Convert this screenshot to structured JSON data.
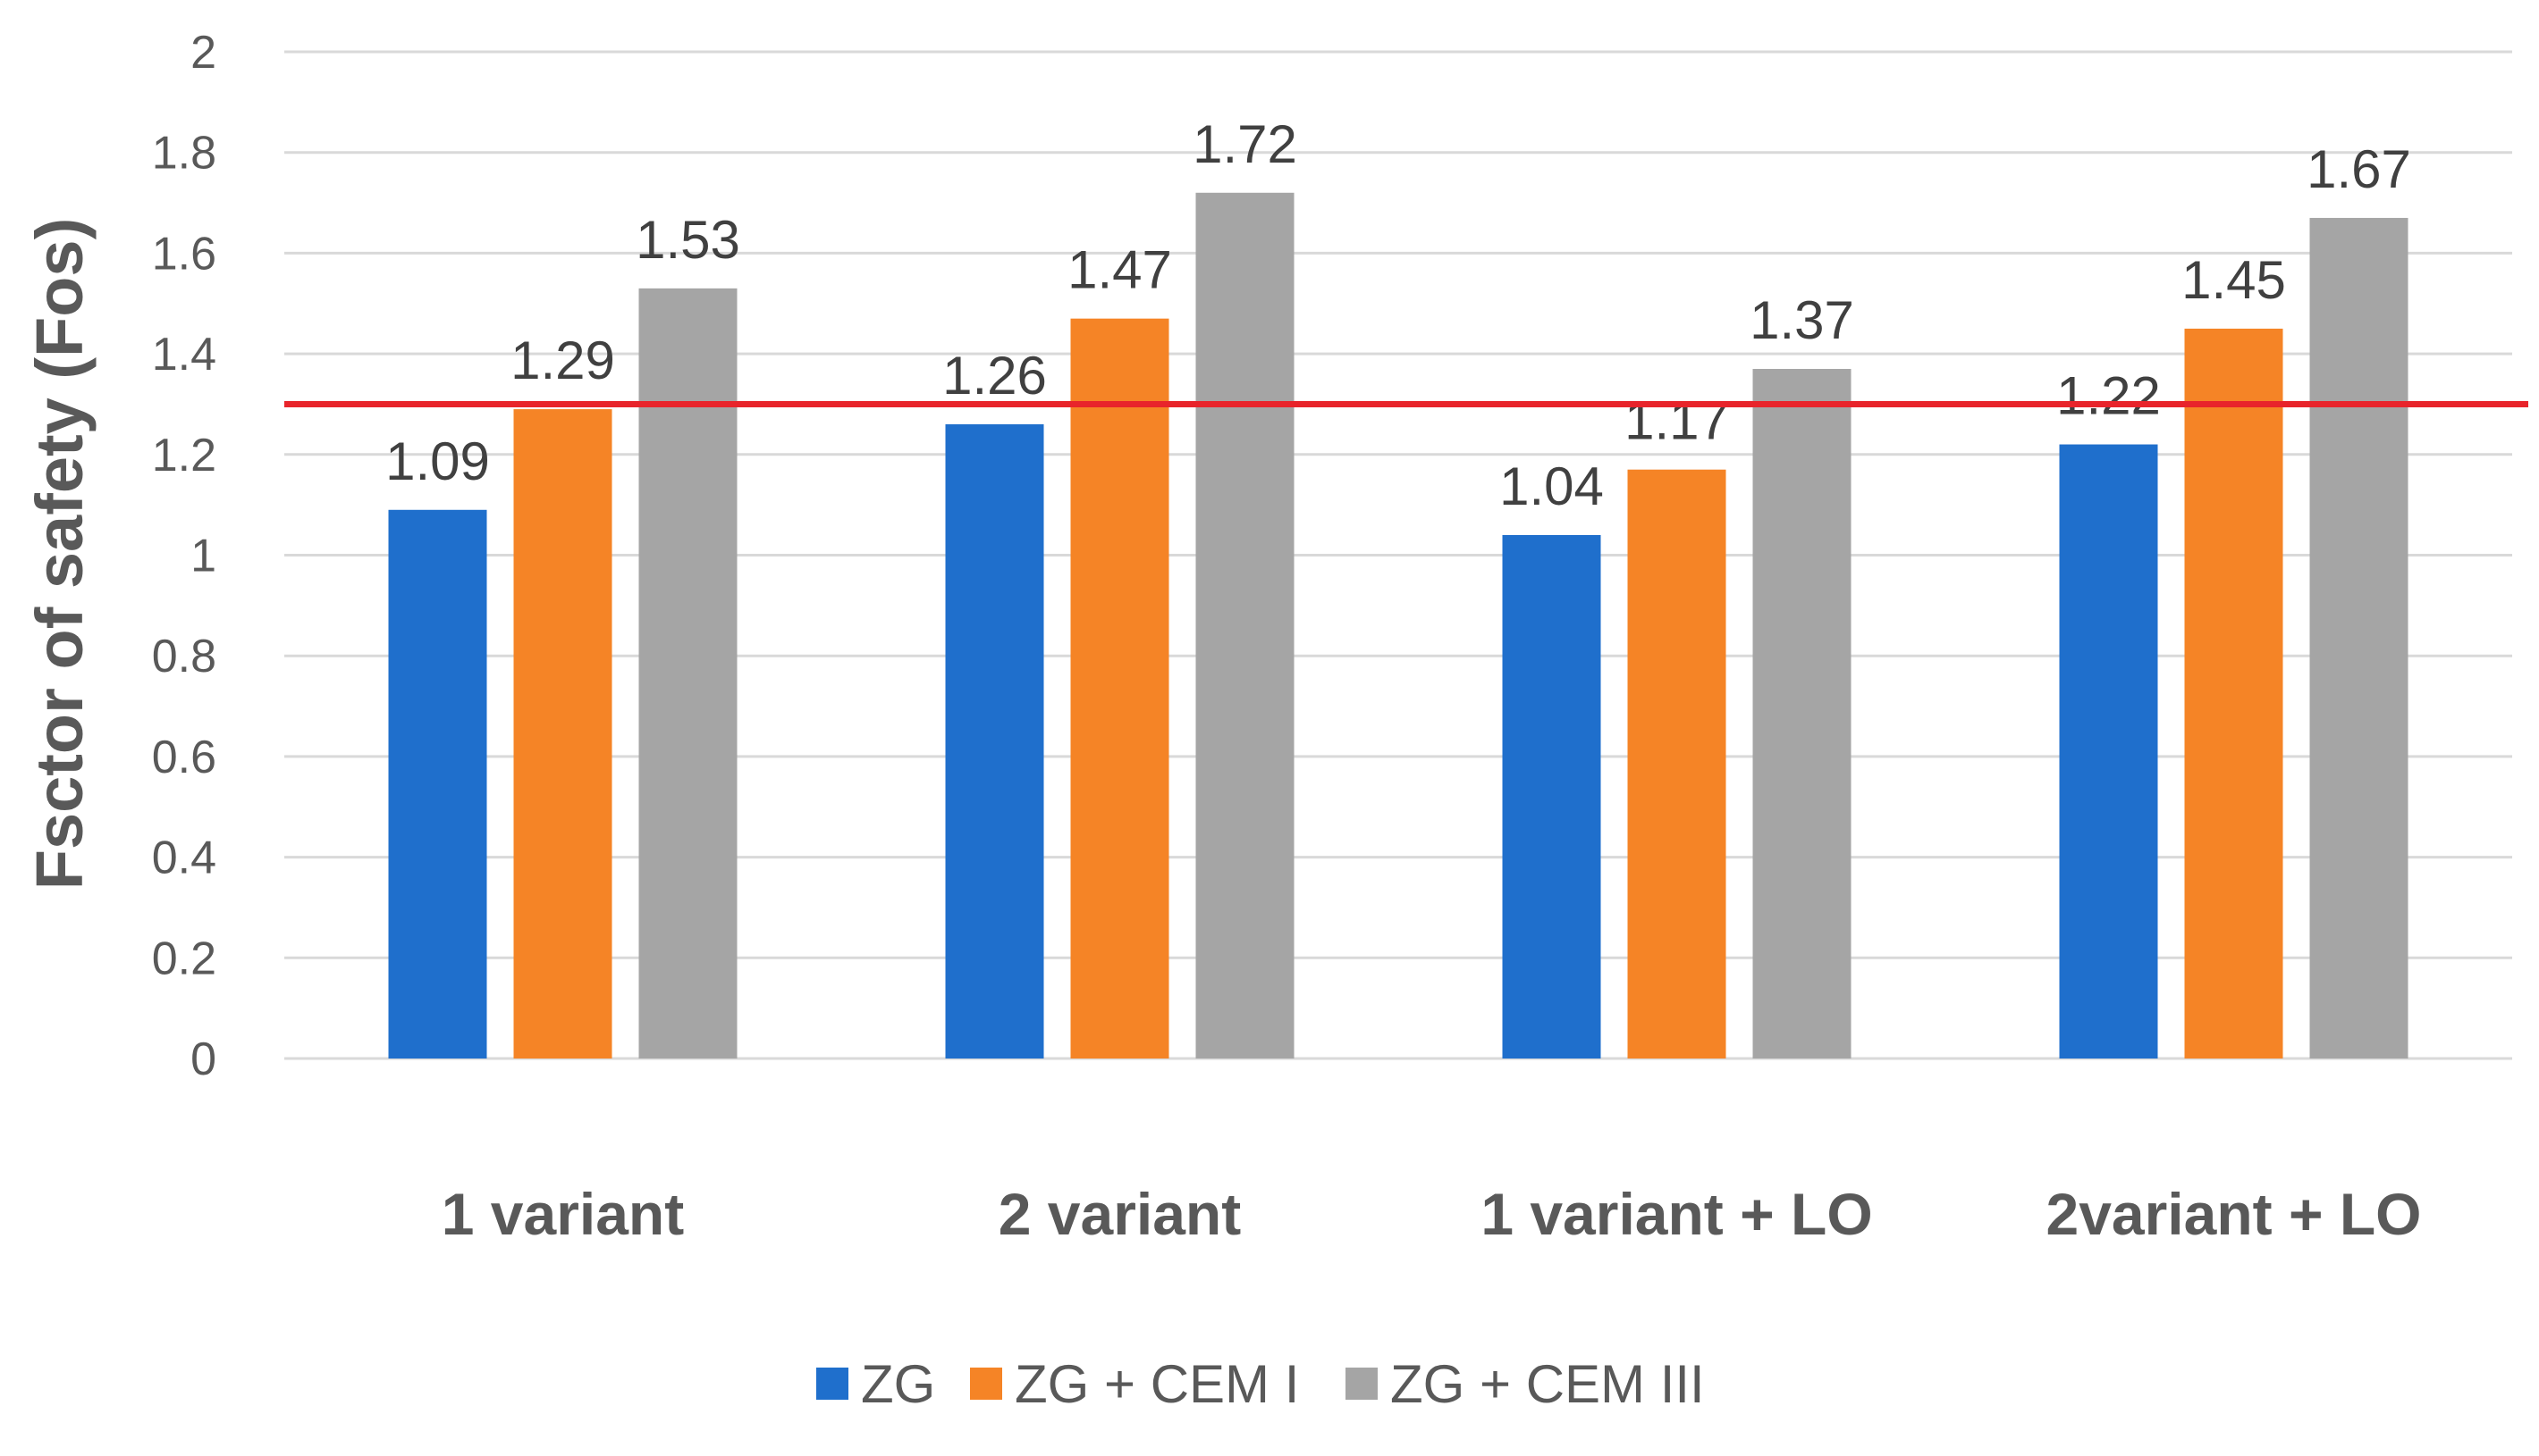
{
  "chart_data": {
    "type": "bar",
    "title": "",
    "xlabel": "",
    "ylabel": "Fsctor of safety (Fos)",
    "ylim": [
      0,
      2
    ],
    "yticks": [
      "0",
      "0.2",
      "0.4",
      "0.6",
      "0.8",
      "1",
      "1.2",
      "1.4",
      "1.6",
      "1.8",
      "2"
    ],
    "grid": true,
    "legend_position": "bottom",
    "categories": [
      "1 variant",
      "2 variant",
      "1 variant + LO",
      "2variant +  LO"
    ],
    "series": [
      {
        "name": "ZG",
        "color": "#1f6fcc",
        "values": [
          1.09,
          1.26,
          1.04,
          1.22
        ]
      },
      {
        "name": "ZG + CEM I",
        "color": "#f58426",
        "values": [
          1.29,
          1.47,
          1.17,
          1.45
        ]
      },
      {
        "name": "ZG + CEM III",
        "color": "#a5a5a5",
        "values": [
          1.53,
          1.72,
          1.37,
          1.67
        ]
      }
    ],
    "data_labels": [
      [
        "1.09",
        "1.26",
        "1.04",
        "1.22"
      ],
      [
        "1.29",
        "1.47",
        "1.17",
        "1.45"
      ],
      [
        "1.53",
        "1.72",
        "1.37",
        "1.67"
      ]
    ],
    "reference_line": {
      "value": 1.3,
      "color": "#e8242b"
    }
  }
}
